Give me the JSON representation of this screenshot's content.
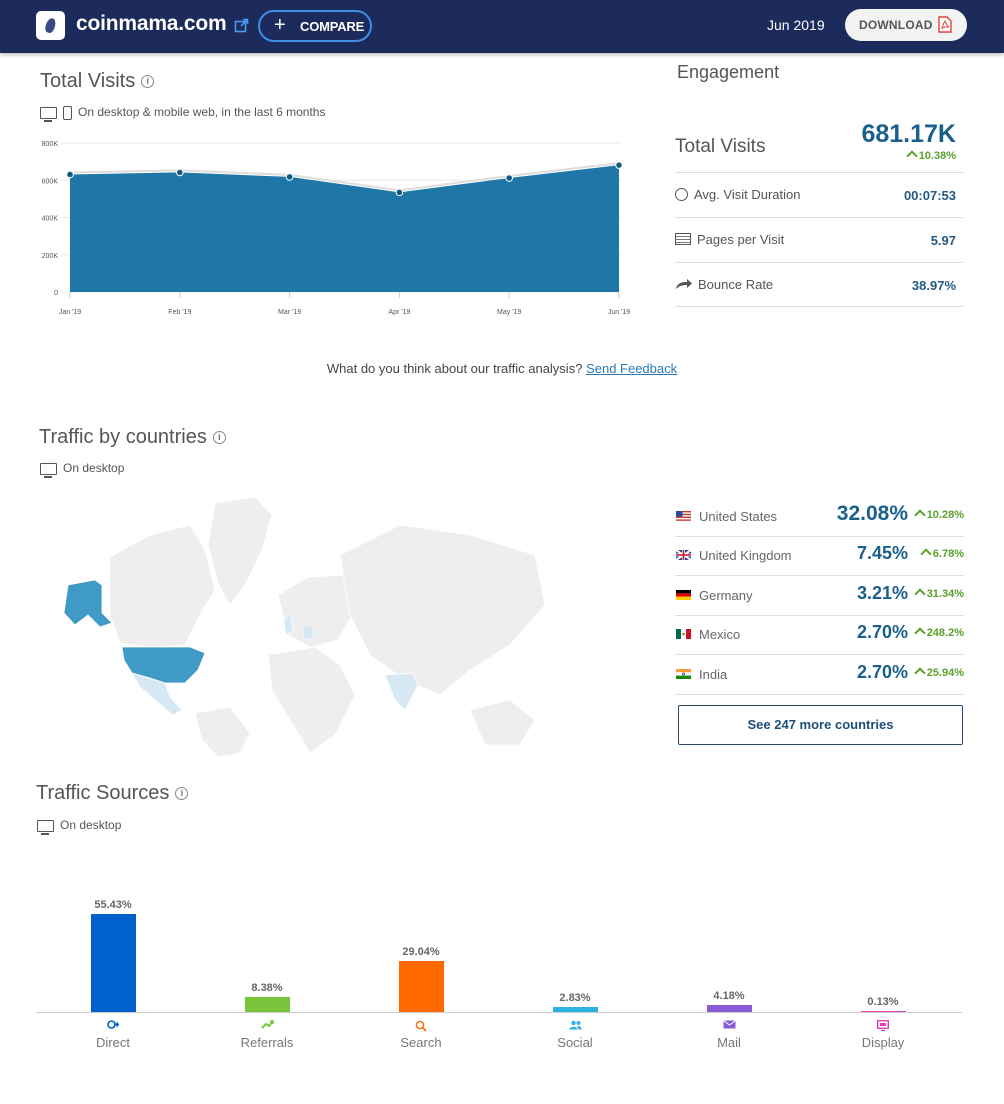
{
  "header": {
    "site": "coinmama.com",
    "compare_label": "COMPARE",
    "date": "Jun 2019",
    "download_label": "DOWNLOAD"
  },
  "total_visits": {
    "title": "Total Visits",
    "subtitle": "On desktop & mobile web, in the last 6 months",
    "chart_data": {
      "type": "area",
      "x": [
        "Jan '19",
        "Feb '19",
        "Mar '19",
        "Apr '19",
        "May '19",
        "Jun '19"
      ],
      "values": [
        631000,
        642000,
        618000,
        535000,
        612000,
        681170
      ],
      "ylim": [
        0,
        800000
      ],
      "yticks": [
        "800K",
        "600K",
        "400K",
        "200K",
        "0"
      ],
      "grid": true
    }
  },
  "engagement": {
    "title": "Engagement",
    "total_visits_label": "Total Visits",
    "total_visits_value": "681.17K",
    "total_visits_change": "10.38%",
    "avg_duration_label": "Avg. Visit Duration",
    "avg_duration_value": "00:07:53",
    "pages_label": "Pages per Visit",
    "pages_value": "5.97",
    "bounce_label": "Bounce Rate",
    "bounce_value": "38.97%"
  },
  "feedback": {
    "text": "What do you think about our traffic analysis?",
    "link": "Send Feedback"
  },
  "countries": {
    "title": "Traffic by countries",
    "subtitle": "On desktop",
    "items": [
      {
        "name": "United States",
        "pct": "32.08%",
        "change": "10.28%"
      },
      {
        "name": "United Kingdom",
        "pct": "7.45%",
        "change": "6.78%"
      },
      {
        "name": "Germany",
        "pct": "3.21%",
        "change": "31.34%"
      },
      {
        "name": "Mexico",
        "pct": "2.70%",
        "change": "248.2%"
      },
      {
        "name": "India",
        "pct": "2.70%",
        "change": "25.94%"
      }
    ],
    "more_label": "See 247 more countries"
  },
  "sources": {
    "title": "Traffic Sources",
    "subtitle": "On desktop",
    "chart_data": {
      "type": "bar",
      "categories": [
        "Direct",
        "Referrals",
        "Search",
        "Social",
        "Mail",
        "Display"
      ],
      "values": [
        55.43,
        8.38,
        29.04,
        2.83,
        4.18,
        0.13
      ],
      "labels": [
        "55.43%",
        "8.38%",
        "29.04%",
        "2.83%",
        "4.18%",
        "0.13%"
      ],
      "colors": [
        "#0061cc",
        "#7bc53c",
        "#ff6a00",
        "#2cb1e3",
        "#8a5bd6",
        "#e03fb8"
      ],
      "icons": [
        "direct-icon",
        "referrals-icon",
        "search-icon",
        "social-icon",
        "mail-icon",
        "display-icon"
      ],
      "ylim": [
        0,
        55.43
      ]
    }
  }
}
